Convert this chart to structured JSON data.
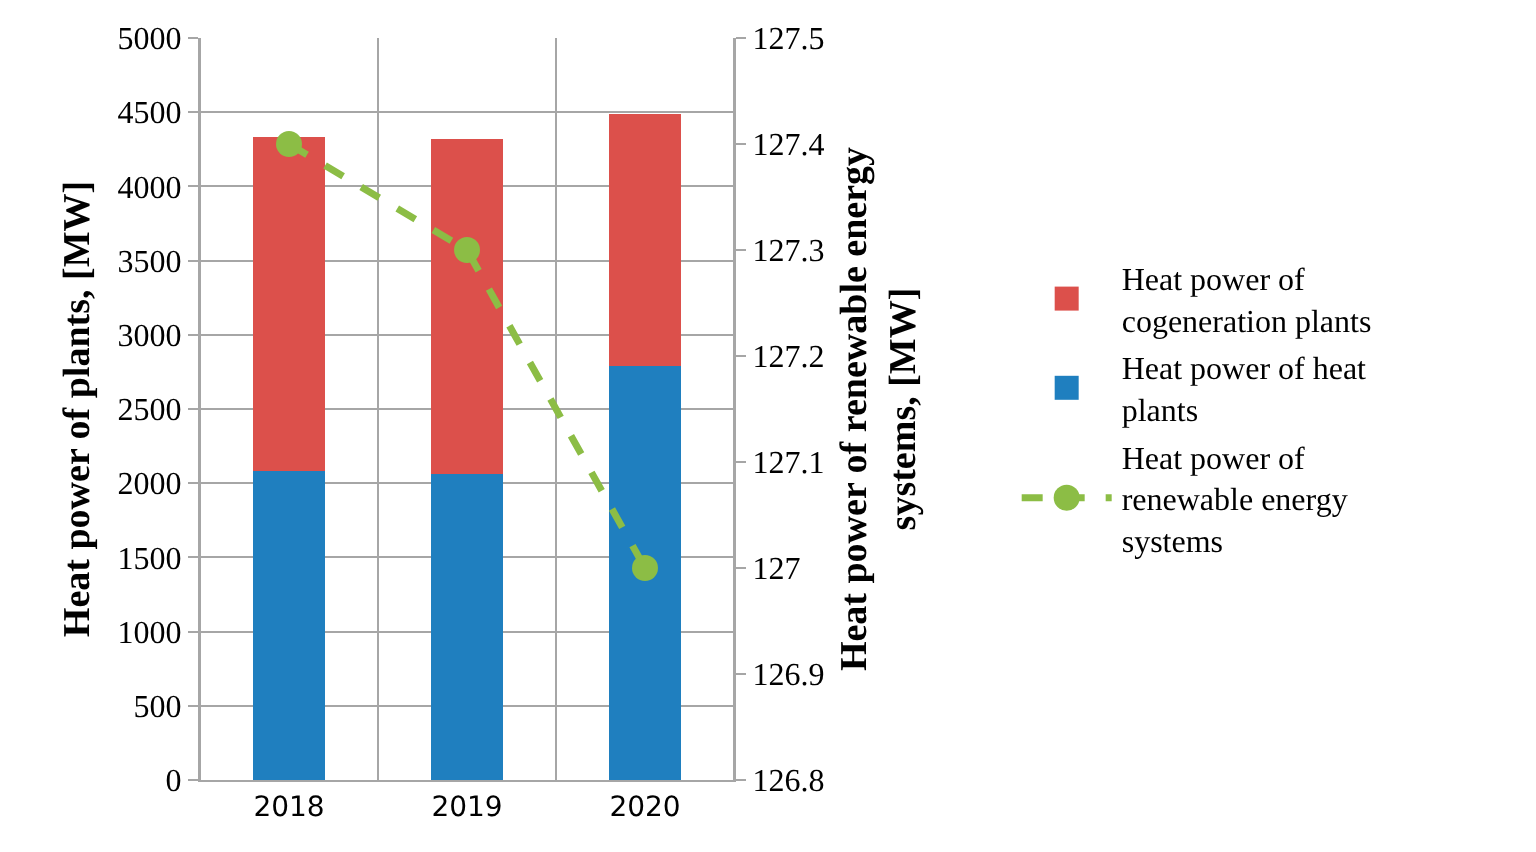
{
  "chart_data": {
    "type": "bar",
    "stacked": true,
    "categories": [
      "2018",
      "2019",
      "2020"
    ],
    "series": [
      {
        "name": "Heat power of heat plants",
        "color": "#1f7fbf",
        "values": [
          2080,
          2060,
          2790
        ]
      },
      {
        "name": "Heat power of cogeneration plants",
        "color": "#dc504b",
        "values": [
          2250,
          2260,
          1700
        ]
      },
      {
        "name": "Heat power of renewable energy systems",
        "color": "#8cbd45",
        "values": [
          127.4,
          127.3,
          127.0
        ],
        "type": "line",
        "axis": "y2",
        "marker": "circle",
        "line_style": "dashed"
      }
    ],
    "ylabel": "Heat power of plants, [MW]",
    "y2label": "Heat power of renewable energy systems, [MW]",
    "ylim": [
      0,
      5000
    ],
    "yticks": [
      0,
      500,
      1000,
      1500,
      2000,
      2500,
      3000,
      3500,
      4000,
      4500,
      5000
    ],
    "y2lim": [
      126.8,
      127.5
    ],
    "y2ticks": [
      126.8,
      126.9,
      127,
      127.1,
      127.2,
      127.3,
      127.4,
      127.5
    ],
    "grid": true,
    "legend": "right"
  }
}
